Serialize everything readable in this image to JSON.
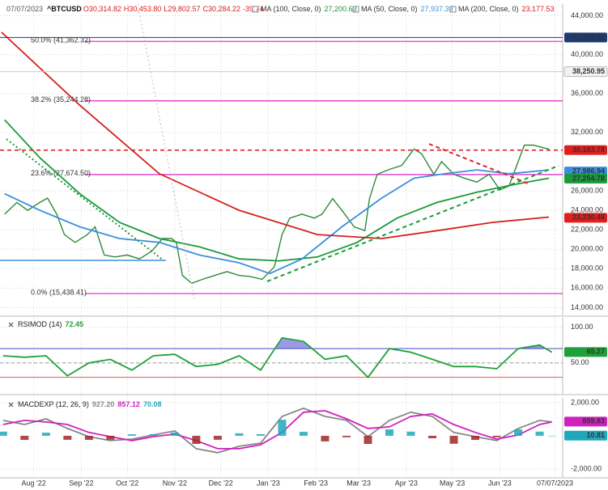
{
  "chart_data": [
    {
      "type": "line",
      "header": {
        "date": "07/07/2023",
        "ohlc": [
          "O30,314.82",
          "H30,453.80",
          "L29,802.57",
          "C30,284.22",
          "-39.74"
        ]
      },
      "xlim": [
        -22,
        345
      ],
      "xticks": [
        {
          "value": 0,
          "label": "Aug '22"
        },
        {
          "value": 31,
          "label": "Sep '22"
        },
        {
          "value": 61,
          "label": "Oct '22"
        },
        {
          "value": 92,
          "label": "Nov '22"
        },
        {
          "value": 122,
          "label": "Dec '22"
        },
        {
          "value": 153,
          "label": "Jan '23"
        },
        {
          "value": 184,
          "label": "Feb '23"
        },
        {
          "value": 212,
          "label": "Mar '23"
        },
        {
          "value": 243,
          "label": "Apr '23"
        },
        {
          "value": 273,
          "label": "May '23"
        },
        {
          "value": 304,
          "label": "Jun '23"
        },
        {
          "value": 340,
          "label": "07/07/2023"
        }
      ],
      "ylim": [
        13200,
        45200
      ],
      "yticks": [
        {
          "value": 44000,
          "label": "44,000.00"
        },
        {
          "value": 40000,
          "label": "40,000.00"
        },
        {
          "value": 36000,
          "label": "36,000.00"
        },
        {
          "value": 32000,
          "label": "32,000.00"
        },
        {
          "value": 26000,
          "label": "26,000.00"
        },
        {
          "value": 24000,
          "label": "24,000.00"
        },
        {
          "value": 22000,
          "label": "22,000.00"
        },
        {
          "value": 20000,
          "label": "20,000.00"
        },
        {
          "value": 18000,
          "label": "18,000.00"
        },
        {
          "value": 16000,
          "label": "16,000.00"
        },
        {
          "value": 14000,
          "label": "14,000.00"
        }
      ],
      "series": [
        {
          "name": "^BTCUSD",
          "color": "#2f8a3a",
          "x": [
            -19,
            -11,
            -4,
            4,
            9,
            15,
            20,
            27,
            35,
            40,
            46,
            53,
            61,
            69,
            77,
            84,
            90,
            93,
            97,
            103,
            110,
            118,
            126,
            134,
            141,
            149,
            157,
            162,
            167,
            175,
            183,
            188,
            195,
            201,
            209,
            216,
            219,
            224,
            232,
            240,
            248,
            253,
            261,
            266,
            274,
            281,
            289,
            297,
            304,
            310,
            315,
            320,
            326,
            333,
            336
          ],
          "values": [
            23600,
            24800,
            24000,
            24800,
            25250,
            23600,
            21500,
            20700,
            21500,
            22300,
            19400,
            19200,
            19400,
            19000,
            19800,
            21100,
            21100,
            20700,
            17300,
            16500,
            16900,
            17300,
            17700,
            17300,
            17200,
            16900,
            18200,
            21500,
            23200,
            23600,
            23200,
            23600,
            25200,
            24000,
            22300,
            21900,
            25200,
            27700,
            28200,
            28600,
            30300,
            29800,
            27700,
            29000,
            27700,
            27300,
            26900,
            27700,
            26100,
            26500,
            28600,
            30700,
            30700,
            30400,
            30300
          ]
        },
        {
          "name": "MA (100, Close, 0)",
          "value_label": "27,200.63",
          "color": "#1a9a3a",
          "x": [
            -19,
            4,
            30,
            56,
            82,
            108,
            134,
            160,
            185,
            211,
            237,
            263,
            289,
            315,
            336
          ],
          "values": [
            33300,
            29400,
            25700,
            22750,
            21100,
            20250,
            19000,
            18800,
            19200,
            20700,
            23200,
            24800,
            25850,
            26700,
            27300
          ]
        },
        {
          "name": "MA (50, Close, 0)",
          "value_label": "27,937.39",
          "color": "#3a8fe0",
          "x": [
            -19,
            4,
            30,
            56,
            82,
            108,
            134,
            154,
            175,
            201,
            227,
            248,
            268,
            289,
            310,
            336
          ],
          "values": [
            25700,
            24000,
            22300,
            21100,
            20700,
            19400,
            18600,
            17500,
            19000,
            22300,
            25250,
            27300,
            27750,
            28150,
            27750,
            28150
          ]
        },
        {
          "name": "MA (200, Close, 0)",
          "value_label": "23,177.53",
          "color": "#d42020",
          "x": [
            -21,
            30,
            82,
            134,
            185,
            227,
            263,
            299,
            336
          ],
          "values": [
            42300,
            34800,
            27750,
            24000,
            21500,
            21100,
            21900,
            22750,
            23300
          ]
        }
      ],
      "fib_levels": [
        {
          "value": 41362.32,
          "label": "50.0% (41,362.32)"
        },
        {
          "value": 35244.28,
          "label": "38.2% (35,244.28)"
        },
        {
          "value": 27674.5,
          "label": "23.6% (27,674.50)"
        },
        {
          "value": 15438.41,
          "label": "0.0% (15,438.41)"
        }
      ],
      "fib_color": "#e020c0",
      "price_lines": [
        {
          "value": 41758.83,
          "label": "41,758.83",
          "color": "#1f3b73",
          "style": "solid"
        },
        {
          "value": 38250.95,
          "label": "38,250.95",
          "color": "#cccccc",
          "style": "solid"
        },
        {
          "value": 30183.78,
          "label": "30,183.78",
          "color": "#e02020",
          "style": "dashed"
        },
        {
          "value": 27986.94,
          "label": "27,986.94",
          "color": "#3a8fe0",
          "style": "none"
        },
        {
          "value": 27254.78,
          "label": "27,254.78",
          "color": "#1a9a3a",
          "style": "none"
        },
        {
          "value": 23230.48,
          "label": "23,230.48",
          "color": "#e02020",
          "style": "none"
        }
      ]
    },
    {
      "type": "line",
      "title": "RSIMOD (14)",
      "x": [
        -20,
        -6,
        8,
        22,
        36,
        50,
        64,
        78,
        92,
        106,
        120,
        134,
        148,
        162,
        176,
        190,
        204,
        218,
        232,
        246,
        260,
        274,
        288,
        302,
        316,
        330,
        338
      ],
      "ylim": [
        7,
        113
      ],
      "yticks": [
        {
          "value": 100,
          "label": "100.00"
        },
        {
          "value": 50,
          "label": "50.00"
        }
      ],
      "bands": [
        30,
        70
      ],
      "band_colors": [
        "#e05a5a",
        "#4848d0"
      ],
      "series": [
        {
          "name": "RSIMOD (14)",
          "value_label": "72.45",
          "color": "#1fa03a",
          "values": [
            60,
            58,
            60,
            32,
            50,
            55,
            40,
            60,
            62,
            45,
            48,
            60,
            40,
            85,
            80,
            55,
            60,
            30,
            70,
            65,
            55,
            45,
            45,
            42,
            70,
            75,
            65
          ]
        }
      ],
      "price_lines": [
        {
          "value": 65.27,
          "label": "65.27",
          "color": "#1fa03a",
          "style": "none"
        }
      ]
    },
    {
      "type": "line",
      "title": "MACDEXP (12, 26, 9)",
      "x": [
        -20,
        -6,
        8,
        22,
        36,
        50,
        64,
        78,
        92,
        106,
        120,
        134,
        148,
        162,
        176,
        190,
        204,
        218,
        232,
        246,
        260,
        274,
        288,
        302,
        316,
        330,
        338
      ],
      "ylim": [
        -2490,
        2290
      ],
      "yticks": [
        {
          "value": 2000,
          "label": "2,000.00"
        },
        {
          "value": -2000,
          "label": "-2,000.00"
        }
      ],
      "series": [
        {
          "name": "MACD",
          "value_label": "927.20",
          "color": "#888888",
          "values": [
            930,
            680,
            1020,
            440,
            -50,
            -290,
            -200,
            50,
            290,
            -780,
            -1020,
            -630,
            -440,
            1170,
            1660,
            1170,
            930,
            -50,
            930,
            1420,
            1170,
            200,
            -50,
            -290,
            440,
            930,
            830
          ]
        },
        {
          "name": "Signal",
          "value_label": "857.12",
          "color": "#d020c0",
          "values": [
            680,
            930,
            830,
            680,
            200,
            -50,
            -290,
            -50,
            100,
            -290,
            -780,
            -780,
            -540,
            200,
            1420,
            1510,
            1020,
            440,
            540,
            1170,
            1320,
            680,
            200,
            -200,
            50,
            680,
            830
          ]
        },
        {
          "name": "Histogram",
          "value_label": "70.08",
          "color": "#20a8b8",
          "negative_color": "#a02828",
          "kind": "bar",
          "values": [
            250,
            -250,
            190,
            -240,
            -250,
            -240,
            90,
            100,
            190,
            -490,
            -240,
            150,
            100,
            970,
            240,
            -340,
            -90,
            -490,
            390,
            250,
            -150,
            -480,
            -250,
            -90,
            390,
            250,
            0
          ]
        }
      ],
      "price_lines": [
        {
          "value": 859.83,
          "label": "859.83",
          "color": "#d020c0",
          "style": "none"
        },
        {
          "value": 10.81,
          "label": "10.81",
          "color": "#20a8b8",
          "style": "none"
        }
      ]
    }
  ]
}
